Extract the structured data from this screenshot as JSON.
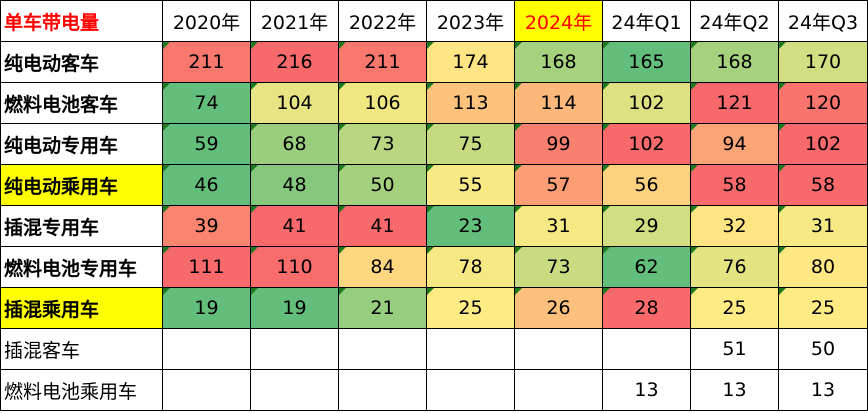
{
  "table": {
    "corner": "单车带电量",
    "columns": [
      {
        "label": "2020年",
        "highlight": false
      },
      {
        "label": "2021年",
        "highlight": false
      },
      {
        "label": "2022年",
        "highlight": false
      },
      {
        "label": "2023年",
        "highlight": false
      },
      {
        "label": "2024年",
        "highlight": true
      },
      {
        "label": "24年Q1",
        "highlight": false
      },
      {
        "label": "24年Q2",
        "highlight": false
      },
      {
        "label": "24年Q3",
        "highlight": false
      }
    ],
    "rows": [
      {
        "label": "纯电动客车",
        "highlight": false,
        "bold": true,
        "values": [
          211,
          216,
          211,
          174,
          168,
          165,
          168,
          170
        ]
      },
      {
        "label": "燃料电池客车",
        "highlight": false,
        "bold": true,
        "values": [
          74,
          104,
          106,
          113,
          114,
          102,
          121,
          120
        ]
      },
      {
        "label": "纯电动专用车",
        "highlight": false,
        "bold": true,
        "values": [
          59,
          68,
          73,
          75,
          99,
          102,
          94,
          102
        ]
      },
      {
        "label": "纯电动乘用车",
        "highlight": true,
        "bold": true,
        "values": [
          46,
          48,
          50,
          55,
          57,
          56,
          58,
          58
        ]
      },
      {
        "label": "插混专用车",
        "highlight": false,
        "bold": true,
        "values": [
          39,
          41,
          41,
          23,
          31,
          29,
          32,
          31
        ]
      },
      {
        "label": "燃料电池专用车",
        "highlight": false,
        "bold": true,
        "values": [
          111,
          110,
          84,
          78,
          73,
          62,
          76,
          80
        ]
      },
      {
        "label": "插混乘用车",
        "highlight": true,
        "bold": true,
        "values": [
          19,
          19,
          21,
          25,
          26,
          28,
          25,
          25
        ]
      },
      {
        "label": "插混客车",
        "highlight": false,
        "bold": false,
        "values": [
          null,
          null,
          null,
          null,
          null,
          null,
          51,
          50
        ]
      },
      {
        "label": "燃料电池乘用车",
        "highlight": false,
        "bold": false,
        "values": [
          null,
          null,
          null,
          null,
          null,
          13,
          13,
          13
        ]
      }
    ]
  }
}
